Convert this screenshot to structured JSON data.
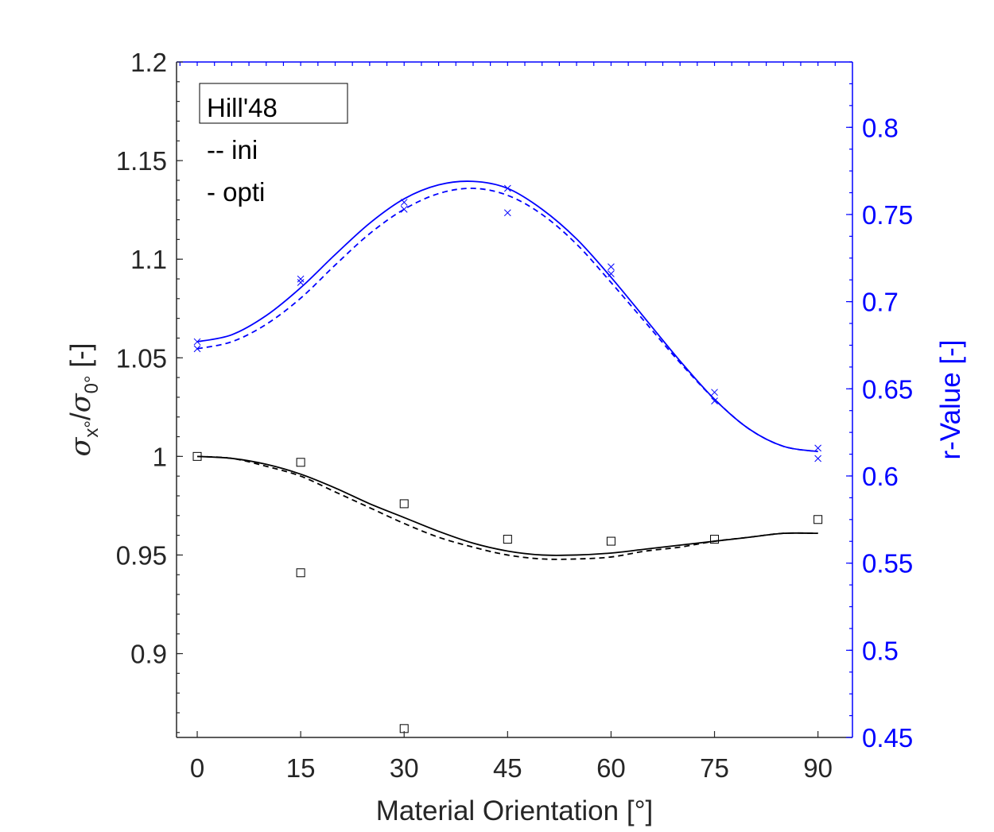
{
  "chart_data": {
    "type": "line",
    "title": "",
    "xlabel": "Material Orientation [°]",
    "ylabel_parts": {
      "sigma": "σ",
      "sub_x": "x°",
      "slash": "/",
      "sub_0": "0°",
      "units": " [-]"
    },
    "ylabel_right": "r-Value [-]",
    "xlim": [
      -3,
      95
    ],
    "ylim_left": [
      0.8575,
      1.2
    ],
    "ylim_right": [
      0.45,
      0.8375
    ],
    "xticks": [
      "0",
      "15",
      "30",
      "45",
      "60",
      "75",
      "90"
    ],
    "yticks_left": [
      "0.9",
      "0.95",
      "1",
      "1.05",
      "1.1",
      "1.15",
      "1.2"
    ],
    "yticks_right": [
      "0.45",
      "0.5",
      "0.55",
      "0.6",
      "0.65",
      "0.7",
      "0.75",
      "0.8"
    ],
    "legend": {
      "placement": "top-left",
      "title": "Hill'48",
      "entries": [
        "-- ini",
        "- opti"
      ]
    },
    "colors": {
      "stress": "#000000",
      "rvalue": "#0000ff"
    },
    "series": [
      {
        "axis": "left",
        "style": "solid",
        "color": "#000000",
        "x": [
          0,
          5,
          10,
          15,
          20,
          25,
          30,
          35,
          40,
          45,
          50,
          55,
          60,
          65,
          70,
          75,
          80,
          85,
          90
        ],
        "y": [
          1.0,
          0.999,
          0.996,
          0.991,
          0.984,
          0.976,
          0.969,
          0.962,
          0.956,
          0.952,
          0.95,
          0.95,
          0.951,
          0.953,
          0.955,
          0.957,
          0.959,
          0.961,
          0.961
        ]
      },
      {
        "axis": "left",
        "style": "dashed",
        "color": "#000000",
        "x": [
          0,
          5,
          10,
          15,
          20,
          25,
          30,
          35,
          40,
          45,
          50,
          55,
          60,
          65,
          70,
          75,
          80,
          85,
          90
        ],
        "y": [
          1.0,
          0.999,
          0.995,
          0.99,
          0.982,
          0.974,
          0.966,
          0.959,
          0.954,
          0.95,
          0.948,
          0.948,
          0.949,
          0.952,
          0.954,
          0.957,
          0.959,
          0.961,
          0.961
        ]
      },
      {
        "axis": "right",
        "style": "solid",
        "color": "#0000ff",
        "x": [
          0,
          5,
          10,
          15,
          20,
          25,
          30,
          35,
          40,
          45,
          50,
          55,
          60,
          65,
          70,
          75,
          80,
          85,
          90
        ],
        "y": [
          0.677,
          0.681,
          0.692,
          0.708,
          0.727,
          0.745,
          0.759,
          0.767,
          0.769,
          0.765,
          0.753,
          0.736,
          0.714,
          0.69,
          0.666,
          0.644,
          0.627,
          0.617,
          0.614
        ]
      },
      {
        "axis": "right",
        "style": "dashed",
        "color": "#0000ff",
        "x": [
          0,
          5,
          10,
          15,
          20,
          25,
          30,
          35,
          40,
          45,
          50,
          55,
          60,
          65,
          70,
          75,
          80,
          85,
          90
        ],
        "y": [
          0.673,
          0.677,
          0.687,
          0.702,
          0.721,
          0.739,
          0.753,
          0.762,
          0.765,
          0.761,
          0.75,
          0.733,
          0.711,
          0.688,
          0.665,
          0.644,
          0.627,
          0.617,
          0.614
        ]
      }
    ],
    "stress_points": {
      "marker": "square",
      "x": [
        0,
        15,
        15,
        30,
        30,
        45,
        60,
        75,
        90
      ],
      "y": [
        1.0,
        0.997,
        0.941,
        0.976,
        0.862,
        0.958,
        0.957,
        0.958,
        0.968
      ]
    },
    "rvalue_points": {
      "marker": "x",
      "x": [
        0,
        0,
        15,
        15,
        30,
        30,
        45,
        45,
        60,
        60,
        75,
        75,
        90,
        90
      ],
      "y": [
        0.677,
        0.673,
        0.711,
        0.713,
        0.757,
        0.753,
        0.765,
        0.751,
        0.72,
        0.716,
        0.648,
        0.643,
        0.616,
        0.61
      ]
    }
  }
}
